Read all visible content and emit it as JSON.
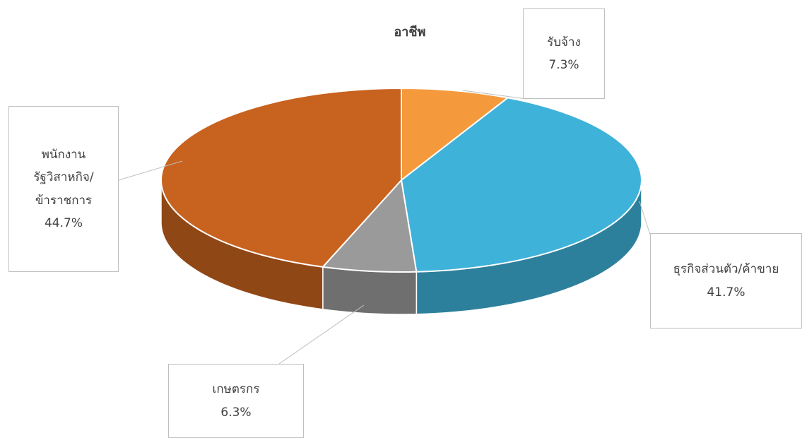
{
  "chart_data": {
    "type": "pie",
    "title": "อาชีพ",
    "categories": [
      "รับจ้าง",
      "ธุรกิจส่วนตัว/ค้าขาย",
      "เกษตรกร",
      "พนักงานรัฐวิสาหกิจ/ข้าราชการ"
    ],
    "values": [
      7.3,
      41.7,
      6.3,
      44.7
    ],
    "value_labels": [
      "7.3%",
      "41.7%",
      "6.3%",
      "44.7%"
    ],
    "colors": [
      "#f59a3c",
      "#3fb2d9",
      "#9a9a9a",
      "#c8621f"
    ]
  }
}
